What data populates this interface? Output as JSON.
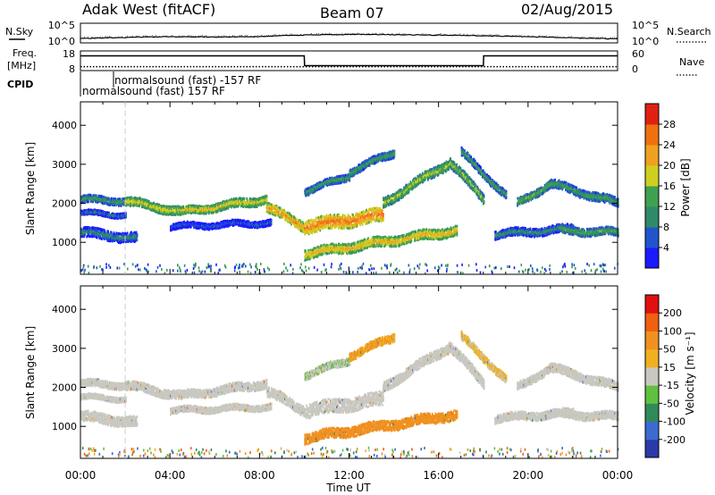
{
  "header": {
    "station": "Adak West (fitACF)",
    "beam": "Beam 07",
    "date": "02/Aug/2015"
  },
  "top_panels": {
    "nsky_label": "N.Sky",
    "nsearch_label": "N.Search",
    "noise_ticks": [
      "10^5",
      "10^0"
    ],
    "freq_label_1": "Freq.",
    "freq_label_2": "[MHz]",
    "freq_ticks": [
      "18",
      "8"
    ],
    "nave_label": "Nave",
    "nave_ticks": [
      "60",
      "0"
    ],
    "cpid_label": "CPID",
    "cpid_entries": [
      "normalsound (fast) -157 RF",
      "normalsound (fast) 157 RF"
    ]
  },
  "axes": {
    "xlabel": "Time UT",
    "ylabel": "Slant Range [km]",
    "x_ticks": [
      "00:00",
      "04:00",
      "08:00",
      "12:00",
      "16:00",
      "20:00",
      "00:00"
    ],
    "y_ticks": [
      "1000",
      "2000",
      "3000",
      "4000"
    ]
  },
  "colorbars": {
    "power": {
      "label": "Power [dB]",
      "ticks": [
        "4",
        "8",
        "12",
        "16",
        "20",
        "24",
        "28"
      ],
      "colors": [
        "#1a1aff",
        "#2255cc",
        "#2f8a6a",
        "#3fa050",
        "#cfcf20",
        "#f0a020",
        "#f07010",
        "#e02010"
      ]
    },
    "velocity": {
      "label": "Velocity [m s⁻¹]",
      "ticks": [
        "200",
        "100",
        "50",
        "15",
        "-15",
        "-50",
        "-100",
        "-200"
      ],
      "colors": [
        "#2a3aa8",
        "#3d6ad0",
        "#2f8a5a",
        "#60c040",
        "#c8c8c0",
        "#f0b020",
        "#f09020",
        "#f06010",
        "#e01010"
      ]
    }
  },
  "chart_data": [
    {
      "type": "line",
      "title": "N.Sky / N.Search",
      "x": [
        "00:00",
        "02:00",
        "04:00",
        "06:00",
        "08:00",
        "10:00",
        "12:00",
        "14:00",
        "16:00",
        "18:00",
        "20:00",
        "22:00",
        "24:00"
      ],
      "series": [
        {
          "name": "N.Sky",
          "values": [
            10,
            20,
            30,
            25,
            30,
            80,
            120,
            100,
            80,
            50,
            30,
            15,
            8
          ]
        }
      ],
      "ylim": [
        1,
        100000
      ],
      "log_scale": true
    },
    {
      "type": "line",
      "title": "Freq. / Nave",
      "x": [
        "00:00",
        "01:00",
        "10:00",
        "10:01",
        "18:00",
        "18:01",
        "24:00"
      ],
      "series": [
        {
          "name": "Freq.",
          "values": [
            15.5,
            15.5,
            15.5,
            10.5,
            10.5,
            15.5,
            15.5
          ]
        },
        {
          "name": "Nave",
          "values": [
            10,
            10,
            10,
            10,
            10,
            10,
            10
          ]
        }
      ],
      "ylim": [
        8,
        18
      ]
    },
    {
      "type": "heatmap",
      "title": "Power [dB]",
      "xlabel": "Time UT",
      "ylabel": "Slant Range [km]",
      "xlim": [
        "00:00",
        "24:00"
      ],
      "ylim": [
        180,
        4600
      ],
      "zlim": [
        0,
        30
      ]
    },
    {
      "type": "heatmap",
      "title": "Velocity [m s⁻¹]",
      "xlabel": "Time UT",
      "ylabel": "Slant Range [km]",
      "xlim": [
        "00:00",
        "24:00"
      ],
      "ylim": [
        180,
        4600
      ],
      "zlim": [
        -250,
        250
      ]
    }
  ]
}
